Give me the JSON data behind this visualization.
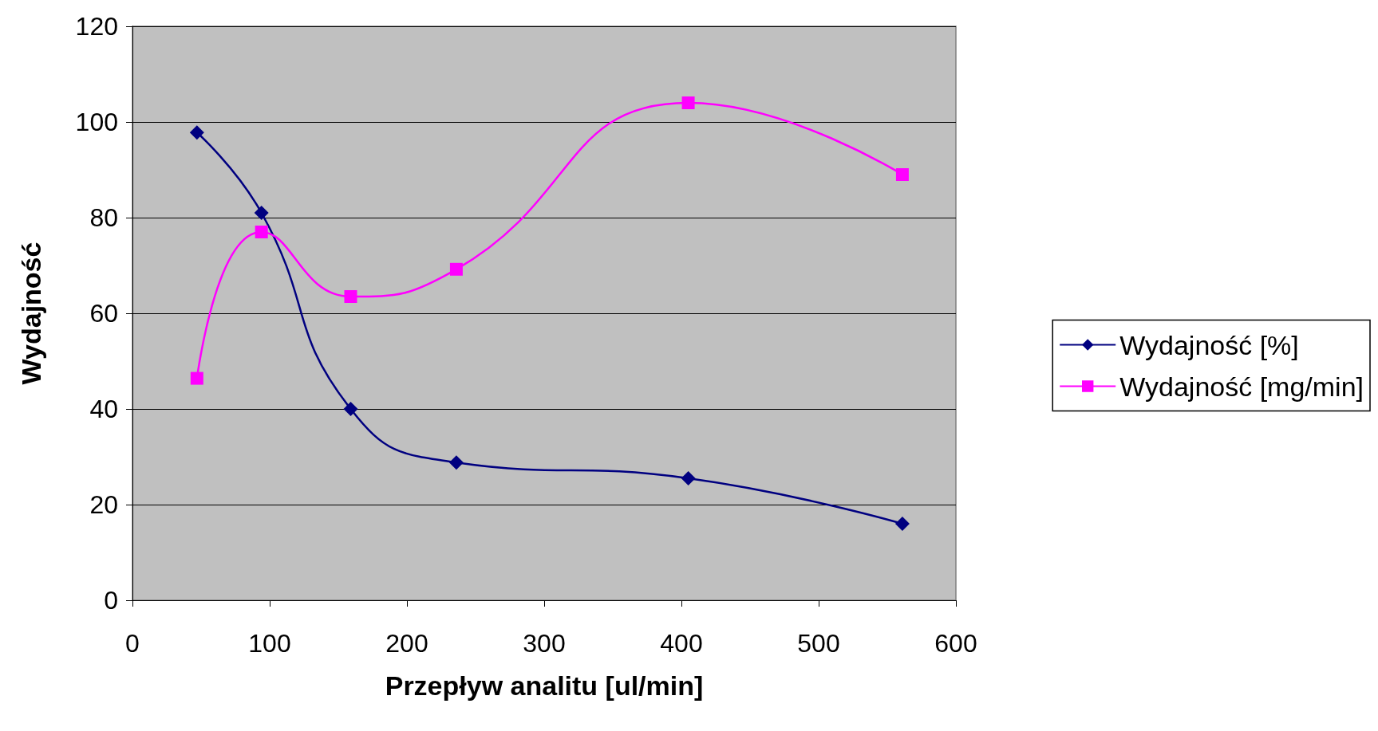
{
  "chart_data": {
    "type": "line",
    "xlabel": "Przepływ analitu [ul/min]",
    "ylabel": "Wydajność",
    "x": [
      47,
      94,
      159,
      236,
      405,
      561
    ],
    "series": [
      {
        "name": "Wydajność [%]",
        "color": "#000080",
        "marker": "diamond",
        "values": [
          97.8,
          81,
          40,
          28.8,
          25.5,
          16
        ]
      },
      {
        "name": "Wydajność [mg/min]",
        "color": "#ff00ff",
        "marker": "square",
        "values": [
          46.4,
          77,
          63.5,
          69.2,
          104,
          89
        ]
      }
    ],
    "xlim": [
      0,
      600
    ],
    "xticks": [
      0,
      100,
      200,
      300,
      400,
      500,
      600
    ],
    "ylim": [
      0,
      120
    ],
    "yticks": [
      0,
      20,
      40,
      60,
      80,
      100,
      120
    ],
    "grid": "y",
    "legend": "right"
  }
}
